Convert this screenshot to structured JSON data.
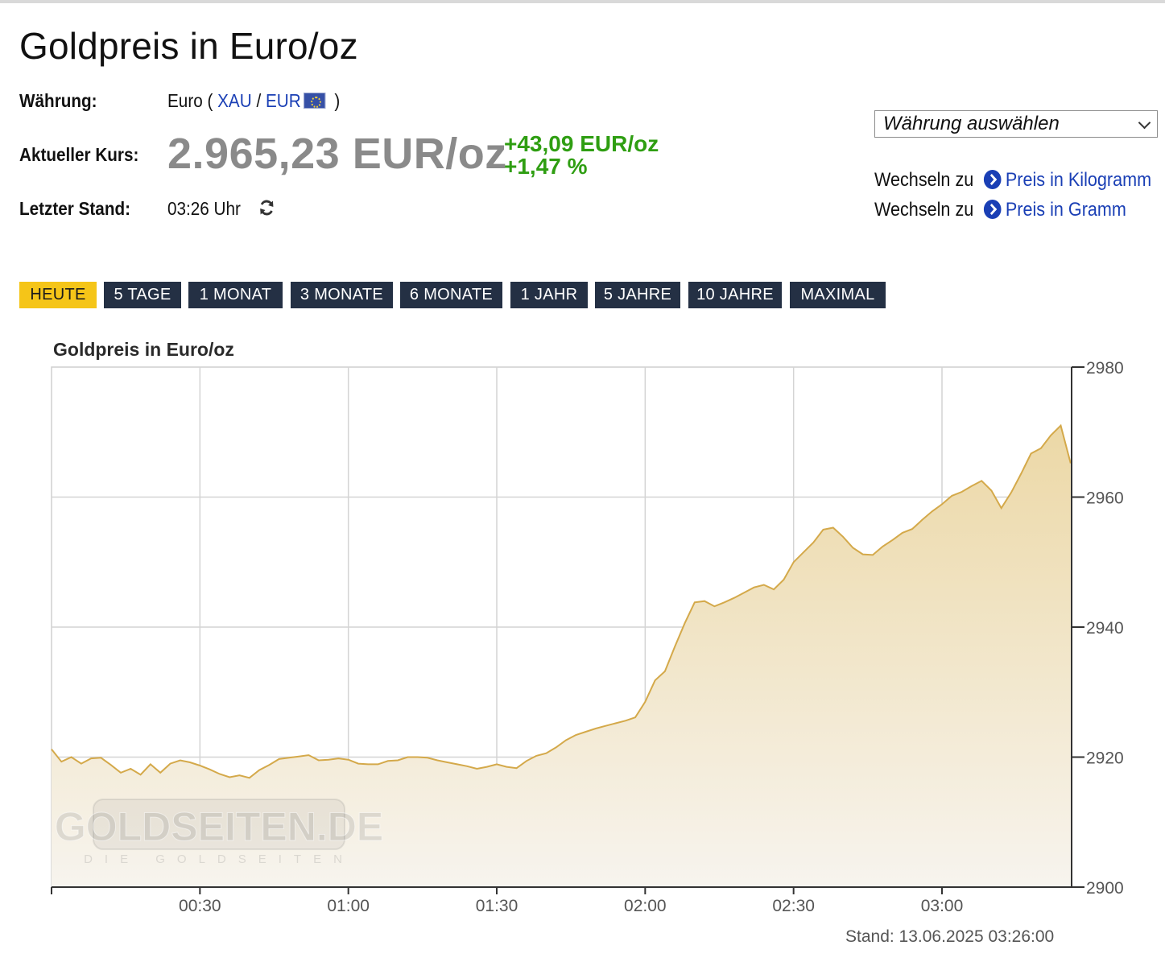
{
  "page": {
    "title": "Goldpreis in Euro/oz"
  },
  "info": {
    "waehrung_label": "Währung:",
    "waehrung_prefix": "Euro (",
    "xau_link": "XAU",
    "slash": "/",
    "eur_link": "EUR",
    "waehrung_suffix": ")",
    "kurs_label": "Aktueller Kurs:",
    "kurs_value": "2.965,23 EUR/oz",
    "change_abs": "+43,09 EUR/oz",
    "change_pct": "+1,47 %",
    "stand_label": "Letzter Stand:",
    "stand_value": "03:26 Uhr"
  },
  "sidebar": {
    "select_label": "Währung auswählen",
    "switch_prefix": "Wechseln zu",
    "link_kilogramm": "Preis in Kilogramm",
    "link_gramm": "Preis in Gramm"
  },
  "ranges": [
    {
      "label": "HEUTE",
      "active": true
    },
    {
      "label": "5 TAGE",
      "active": false
    },
    {
      "label": "1 MONAT",
      "active": false
    },
    {
      "label": "3 MONATE",
      "active": false
    },
    {
      "label": "6 MONATE",
      "active": false
    },
    {
      "label": "1 JAHR",
      "active": false
    },
    {
      "label": "5 JAHRE",
      "active": false
    },
    {
      "label": "10 JAHRE",
      "active": false
    },
    {
      "label": "MAXIMAL",
      "active": false
    }
  ],
  "colors": {
    "line": "#d4a94a",
    "fill_top": "#ecd8a6",
    "fill_bottom": "#f7f4ee",
    "active_tab": "#f5c518",
    "tab": "#243044",
    "positive": "#2f9e12"
  },
  "chart_data": {
    "type": "area",
    "title": "Goldpreis in Euro/oz",
    "xlabel": "",
    "ylabel": "",
    "x_unit": "time HH:MM (13.06.2025)",
    "xlim": [
      "00:00",
      "03:26"
    ],
    "ylim": [
      2900,
      2980
    ],
    "y_ticks": [
      2900,
      2920,
      2940,
      2960,
      2980
    ],
    "x_ticks": [
      "00:30",
      "01:00",
      "01:30",
      "02:00",
      "02:30",
      "03:00"
    ],
    "grid": true,
    "watermark": "GOLDSEITEN.DE",
    "watermark_sub": "DIE GOLDSEITEN",
    "footer": "Stand: 13.06.2025 03:26:00",
    "series": [
      {
        "x": [
          "00:00",
          "00:02",
          "00:04",
          "00:06",
          "00:08",
          "00:10",
          "00:12",
          "00:14",
          "00:16",
          "00:18",
          "00:20",
          "00:22",
          "00:24",
          "00:26",
          "00:28",
          "00:30",
          "00:32",
          "00:34",
          "00:36",
          "00:38",
          "00:40",
          "00:42",
          "00:44",
          "00:46",
          "00:48",
          "00:50",
          "00:52",
          "00:54",
          "00:56",
          "00:58",
          "01:00",
          "01:02",
          "01:04",
          "01:06",
          "01:08",
          "01:10",
          "01:12",
          "01:14",
          "01:16",
          "01:18",
          "01:20",
          "01:22",
          "01:24",
          "01:26",
          "01:28",
          "01:30",
          "01:32",
          "01:34",
          "01:36",
          "01:38",
          "01:40",
          "01:42",
          "01:44",
          "01:46",
          "01:48",
          "01:50",
          "01:52",
          "01:54",
          "01:56",
          "01:58",
          "02:00",
          "02:02",
          "02:04",
          "02:06",
          "02:08",
          "02:10",
          "02:12",
          "02:14",
          "02:16",
          "02:18",
          "02:20",
          "02:22",
          "02:24",
          "02:26",
          "02:28",
          "02:30",
          "02:32",
          "02:34",
          "02:36",
          "02:38",
          "02:40",
          "02:42",
          "02:44",
          "02:46",
          "02:48",
          "02:50",
          "02:52",
          "02:54",
          "02:56",
          "02:58",
          "03:00",
          "03:02",
          "03:04",
          "03:06",
          "03:08",
          "03:10",
          "03:12",
          "03:14",
          "03:16",
          "03:18",
          "03:20",
          "03:22",
          "03:24",
          "03:26"
        ],
        "values": [
          2921.2,
          2919.3,
          2920.0,
          2919.0,
          2919.8,
          2919.9,
          2918.8,
          2917.6,
          2918.2,
          2917.3,
          2918.9,
          2917.6,
          2919.0,
          2919.5,
          2919.2,
          2918.7,
          2918.1,
          2917.4,
          2916.9,
          2917.2,
          2916.8,
          2918.0,
          2918.8,
          2919.7,
          2919.9,
          2920.1,
          2920.3,
          2919.5,
          2919.6,
          2919.8,
          2919.6,
          2919.0,
          2918.9,
          2918.9,
          2919.4,
          2919.5,
          2920.0,
          2920.0,
          2919.9,
          2919.5,
          2919.2,
          2918.9,
          2918.6,
          2918.2,
          2918.5,
          2918.9,
          2918.5,
          2918.3,
          2919.4,
          2920.2,
          2920.6,
          2921.5,
          2922.6,
          2923.4,
          2923.9,
          2924.4,
          2924.8,
          2925.2,
          2925.6,
          2926.1,
          2928.5,
          2931.8,
          2933.2,
          2937.0,
          2940.6,
          2943.8,
          2944.0,
          2943.2,
          2943.8,
          2944.5,
          2945.3,
          2946.1,
          2946.5,
          2945.8,
          2947.3,
          2950.0,
          2951.5,
          2953.0,
          2955.0,
          2955.3,
          2953.9,
          2952.2,
          2951.2,
          2951.1,
          2952.4,
          2953.4,
          2954.5,
          2955.1,
          2956.5,
          2957.8,
          2958.9,
          2960.2,
          2960.8,
          2961.7,
          2962.5,
          2961.0,
          2958.3,
          2960.7,
          2963.6,
          2966.7,
          2967.5,
          2969.5,
          2971.0,
          2965.2
        ]
      }
    ]
  }
}
